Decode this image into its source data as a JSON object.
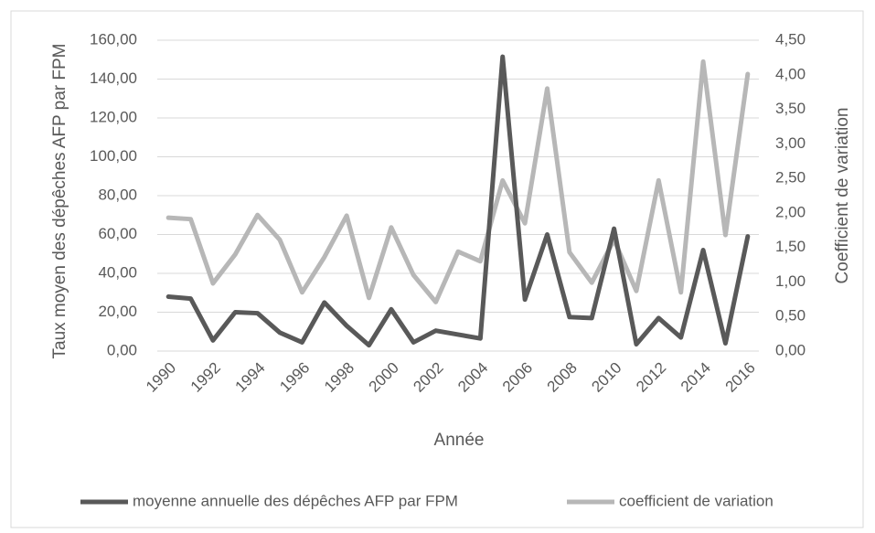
{
  "chart_data": {
    "type": "line",
    "categories": [
      "1990",
      null,
      "1992",
      null,
      "1994",
      null,
      "1996",
      null,
      "1998",
      null,
      "2000",
      null,
      "2002",
      null,
      "2004",
      null,
      "2006",
      null,
      "2008",
      null,
      "2010",
      null,
      "2012",
      null,
      "2014",
      null,
      "2016"
    ],
    "series": [
      {
        "name": "moyenne annuelle des dépêches AFP par FPM",
        "color": "#595959",
        "axis": "y",
        "values": [
          28,
          27,
          5.5,
          20,
          19.5,
          9.5,
          4.5,
          25,
          13,
          3,
          21.5,
          4.5,
          10.5,
          8.5,
          6.5,
          151.5,
          26.5,
          60,
          17.5,
          17,
          63,
          3.5,
          17,
          7,
          52,
          4,
          59
        ]
      },
      {
        "name": "coefficient de variation",
        "color": "#b7b7b7",
        "axis": "y2",
        "values": [
          1.93,
          1.91,
          0.98,
          1.4,
          1.97,
          1.61,
          0.85,
          1.36,
          1.96,
          0.77,
          1.79,
          1.1,
          0.71,
          1.44,
          1.3,
          2.47,
          1.85,
          3.8,
          1.43,
          0.99,
          1.61,
          0.87,
          2.47,
          0.85,
          4.19,
          1.68,
          4.01
        ]
      }
    ],
    "xlabel": "Année",
    "ylabel": "Taux moyen des dépêches AFP par FPM",
    "y2label": "Coefficient de variation",
    "ylim": [
      0,
      160
    ],
    "yticks": [
      {
        "value": 0,
        "label": "0,00"
      },
      {
        "value": 20,
        "label": "20,00"
      },
      {
        "value": 40,
        "label": "40,00"
      },
      {
        "value": 60,
        "label": "60,00"
      },
      {
        "value": 80,
        "label": "80,00"
      },
      {
        "value": 100,
        "label": "100,00"
      },
      {
        "value": 120,
        "label": "120,00"
      },
      {
        "value": 140,
        "label": "140,00"
      },
      {
        "value": 160,
        "label": "160,00"
      }
    ],
    "y2lim": [
      0,
      4.5
    ],
    "y2ticks": [
      {
        "value": 0,
        "label": "0,00"
      },
      {
        "value": 0.5,
        "label": "0,50"
      },
      {
        "value": 1,
        "label": "1,00"
      },
      {
        "value": 1.5,
        "label": "1,50"
      },
      {
        "value": 2,
        "label": "2,00"
      },
      {
        "value": 2.5,
        "label": "2,50"
      },
      {
        "value": 3,
        "label": "3,00"
      },
      {
        "value": 3.5,
        "label": "3,50"
      },
      {
        "value": 4,
        "label": "4,00"
      },
      {
        "value": 4.5,
        "label": "4,50"
      }
    ],
    "grid": true,
    "legend": "bottom"
  }
}
